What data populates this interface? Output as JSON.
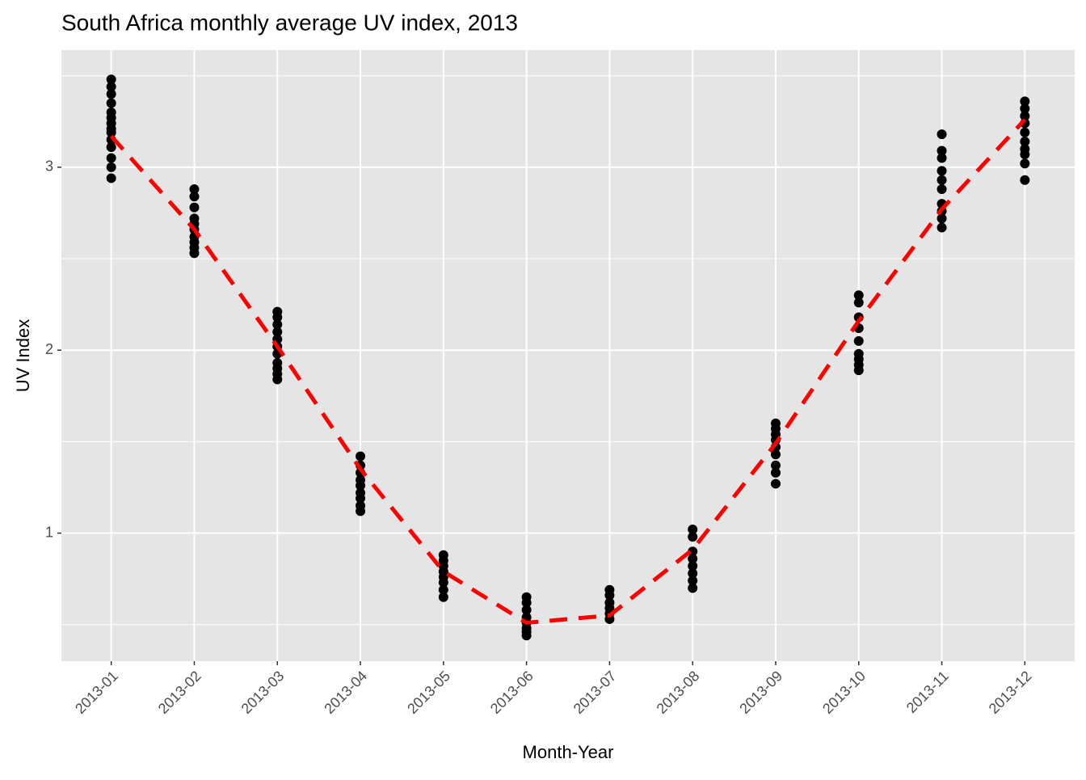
{
  "chart_data": {
    "type": "scatter",
    "title": "South Africa monthly average UV index, 2013",
    "x_label": "Month-Year",
    "y_label": "UV Index",
    "categories": [
      "2013-01",
      "2013-02",
      "2013-03",
      "2013-04",
      "2013-05",
      "2013-06",
      "2013-07",
      "2013-08",
      "2013-09",
      "2013-10",
      "2013-11",
      "2013-12"
    ],
    "points": {
      "color": "#000000",
      "x": [
        "2013-01",
        "2013-01",
        "2013-01",
        "2013-01",
        "2013-01",
        "2013-01",
        "2013-01",
        "2013-01",
        "2013-01",
        "2013-01",
        "2013-01",
        "2013-01",
        "2013-01",
        "2013-01",
        "2013-02",
        "2013-02",
        "2013-02",
        "2013-02",
        "2013-02",
        "2013-02",
        "2013-02",
        "2013-02",
        "2013-02",
        "2013-02",
        "2013-03",
        "2013-03",
        "2013-03",
        "2013-03",
        "2013-03",
        "2013-03",
        "2013-03",
        "2013-03",
        "2013-03",
        "2013-03",
        "2013-03",
        "2013-04",
        "2013-04",
        "2013-04",
        "2013-04",
        "2013-04",
        "2013-04",
        "2013-04",
        "2013-04",
        "2013-04",
        "2013-05",
        "2013-05",
        "2013-05",
        "2013-05",
        "2013-05",
        "2013-05",
        "2013-05",
        "2013-05",
        "2013-06",
        "2013-06",
        "2013-06",
        "2013-06",
        "2013-06",
        "2013-06",
        "2013-06",
        "2013-06",
        "2013-07",
        "2013-07",
        "2013-07",
        "2013-07",
        "2013-07",
        "2013-07",
        "2013-08",
        "2013-08",
        "2013-08",
        "2013-08",
        "2013-08",
        "2013-08",
        "2013-08",
        "2013-08",
        "2013-09",
        "2013-09",
        "2013-09",
        "2013-09",
        "2013-09",
        "2013-09",
        "2013-09",
        "2013-09",
        "2013-09",
        "2013-10",
        "2013-10",
        "2013-10",
        "2013-10",
        "2013-10",
        "2013-10",
        "2013-10",
        "2013-10",
        "2013-10",
        "2013-11",
        "2013-11",
        "2013-11",
        "2013-11",
        "2013-11",
        "2013-11",
        "2013-11",
        "2013-11",
        "2013-11",
        "2013-11",
        "2013-12",
        "2013-12",
        "2013-12",
        "2013-12",
        "2013-12",
        "2013-12",
        "2013-12",
        "2013-12",
        "2013-12",
        "2013-12"
      ],
      "y": [
        3.48,
        3.44,
        3.4,
        3.35,
        3.3,
        3.27,
        3.24,
        3.21,
        3.19,
        3.15,
        3.11,
        3.05,
        3.0,
        2.94,
        2.88,
        2.84,
        2.78,
        2.72,
        2.69,
        2.66,
        2.62,
        2.59,
        2.56,
        2.53,
        2.21,
        2.18,
        2.14,
        2.1,
        2.06,
        2.02,
        1.98,
        1.93,
        1.9,
        1.87,
        1.84,
        1.42,
        1.37,
        1.33,
        1.29,
        1.26,
        1.22,
        1.19,
        1.15,
        1.12,
        0.88,
        0.85,
        0.82,
        0.79,
        0.76,
        0.73,
        0.69,
        0.65,
        0.65,
        0.62,
        0.58,
        0.54,
        0.51,
        0.48,
        0.46,
        0.44,
        0.69,
        0.66,
        0.62,
        0.59,
        0.56,
        0.53,
        1.02,
        0.98,
        0.9,
        0.86,
        0.82,
        0.78,
        0.74,
        0.7,
        1.6,
        1.57,
        1.54,
        1.51,
        1.47,
        1.43,
        1.37,
        1.33,
        1.27,
        2.3,
        2.26,
        2.18,
        2.12,
        2.05,
        1.98,
        1.95,
        1.92,
        1.89,
        3.18,
        3.09,
        3.05,
        2.98,
        2.93,
        2.88,
        2.8,
        2.76,
        2.72,
        2.67,
        3.36,
        3.32,
        3.28,
        3.24,
        3.19,
        3.14,
        3.1,
        3.07,
        3.02,
        2.93
      ]
    },
    "trend": {
      "color": "#ff0000",
      "dashed": true,
      "values": [
        3.17,
        2.66,
        2.02,
        1.35,
        0.79,
        0.51,
        0.55,
        0.91,
        1.49,
        2.16,
        2.77,
        3.26
      ]
    },
    "ylim": [
      0.3,
      3.64
    ],
    "yticks": [
      1,
      2,
      3
    ],
    "minor_yticks": [
      0.5,
      1.5,
      2.5,
      3.5
    ],
    "grid": true
  }
}
